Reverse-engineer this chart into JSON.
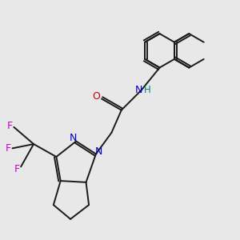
{
  "background_color": "#e8e8e8",
  "bond_color": "#1a1a1a",
  "atom_colors": {
    "N": "#0000cc",
    "O": "#cc0000",
    "F": "#cc00cc",
    "H": "#008080",
    "C": "#1a1a1a"
  },
  "line_width": 1.4,
  "figsize": [
    3.0,
    3.0
  ],
  "dpi": 100
}
